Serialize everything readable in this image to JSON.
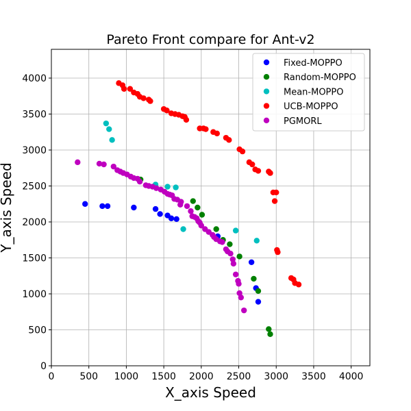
{
  "chart_data": {
    "type": "scatter",
    "title": "Pareto Front compare for Ant-v2",
    "xlabel": "X_axis Speed",
    "ylabel": "Y_axis Speed",
    "xlim": [
      0,
      4250
    ],
    "ylim": [
      0,
      4400
    ],
    "xticks": [
      0,
      500,
      1000,
      1500,
      2000,
      2500,
      3000,
      3500,
      4000
    ],
    "yticks": [
      0,
      500,
      1000,
      1500,
      2000,
      2500,
      3000,
      3500,
      4000
    ],
    "grid": true,
    "legend_position": "top-right",
    "series": [
      {
        "name": "Fixed-MOPPO",
        "color": "#0000ff",
        "points": [
          [
            450,
            2250
          ],
          [
            680,
            2220
          ],
          [
            750,
            2220
          ],
          [
            1100,
            2200
          ],
          [
            1390,
            2180
          ],
          [
            1450,
            2110
          ],
          [
            1550,
            2090
          ],
          [
            1600,
            2050
          ],
          [
            1670,
            2040
          ],
          [
            2220,
            1800
          ],
          [
            2670,
            1440
          ],
          [
            2730,
            1080
          ],
          [
            2760,
            890
          ]
        ]
      },
      {
        "name": "Random-MOPPO",
        "color": "#008000",
        "points": [
          [
            1190,
            2590
          ],
          [
            1890,
            2290
          ],
          [
            1950,
            2200
          ],
          [
            2010,
            2100
          ],
          [
            2200,
            1900
          ],
          [
            2290,
            1750
          ],
          [
            2380,
            1690
          ],
          [
            2510,
            1520
          ],
          [
            2700,
            1210
          ],
          [
            2760,
            1040
          ],
          [
            2900,
            510
          ],
          [
            2920,
            440
          ]
        ]
      },
      {
        "name": "Mean-MOPPO",
        "color": "#00bfbf",
        "points": [
          [
            730,
            3370
          ],
          [
            770,
            3290
          ],
          [
            810,
            3140
          ],
          [
            1390,
            2520
          ],
          [
            1550,
            2490
          ],
          [
            1660,
            2480
          ],
          [
            1760,
            1900
          ],
          [
            2460,
            1880
          ],
          [
            2740,
            1740
          ]
        ]
      },
      {
        "name": "UCB-MOPPO",
        "color": "#ff0000",
        "points": [
          [
            900,
            3930
          ],
          [
            950,
            3900
          ],
          [
            970,
            3850
          ],
          [
            1050,
            3850
          ],
          [
            1100,
            3800
          ],
          [
            1150,
            3780
          ],
          [
            1180,
            3740
          ],
          [
            1230,
            3720
          ],
          [
            1300,
            3700
          ],
          [
            1320,
            3680
          ],
          [
            1500,
            3570
          ],
          [
            1540,
            3550
          ],
          [
            1600,
            3510
          ],
          [
            1650,
            3500
          ],
          [
            1700,
            3490
          ],
          [
            1750,
            3470
          ],
          [
            1780,
            3460
          ],
          [
            1800,
            3420
          ],
          [
            1980,
            3300
          ],
          [
            2030,
            3300
          ],
          [
            2060,
            3290
          ],
          [
            2160,
            3250
          ],
          [
            2210,
            3230
          ],
          [
            2330,
            3170
          ],
          [
            2370,
            3140
          ],
          [
            2510,
            3010
          ],
          [
            2550,
            2980
          ],
          [
            2640,
            2830
          ],
          [
            2680,
            2800
          ],
          [
            2720,
            2730
          ],
          [
            2760,
            2710
          ],
          [
            2900,
            2700
          ],
          [
            2920,
            2680
          ],
          [
            2960,
            2410
          ],
          [
            3000,
            2410
          ],
          [
            2980,
            2290
          ],
          [
            3010,
            1610
          ],
          [
            3020,
            1580
          ],
          [
            3200,
            1220
          ],
          [
            3230,
            1200
          ],
          [
            3250,
            1150
          ],
          [
            3300,
            1130
          ]
        ]
      },
      {
        "name": "PGMORL",
        "color": "#bf00bf",
        "points": [
          [
            350,
            2830
          ],
          [
            640,
            2810
          ],
          [
            700,
            2800
          ],
          [
            830,
            2770
          ],
          [
            880,
            2720
          ],
          [
            920,
            2700
          ],
          [
            960,
            2680
          ],
          [
            1010,
            2660
          ],
          [
            1060,
            2630
          ],
          [
            1100,
            2610
          ],
          [
            1150,
            2600
          ],
          [
            1180,
            2560
          ],
          [
            1260,
            2510
          ],
          [
            1300,
            2500
          ],
          [
            1350,
            2490
          ],
          [
            1400,
            2470
          ],
          [
            1460,
            2450
          ],
          [
            1510,
            2420
          ],
          [
            1550,
            2390
          ],
          [
            1580,
            2380
          ],
          [
            1610,
            2370
          ],
          [
            1640,
            2320
          ],
          [
            1680,
            2310
          ],
          [
            1730,
            2280
          ],
          [
            1720,
            2240
          ],
          [
            1810,
            2220
          ],
          [
            1860,
            2150
          ],
          [
            1880,
            2080
          ],
          [
            1910,
            2070
          ],
          [
            1940,
            2050
          ],
          [
            1960,
            2010
          ],
          [
            1980,
            1990
          ],
          [
            2000,
            1950
          ],
          [
            2050,
            1900
          ],
          [
            2100,
            1860
          ],
          [
            2150,
            1820
          ],
          [
            2170,
            1790
          ],
          [
            2200,
            1760
          ],
          [
            2250,
            1730
          ],
          [
            2280,
            1720
          ],
          [
            2330,
            1620
          ],
          [
            2350,
            1590
          ],
          [
            2390,
            1560
          ],
          [
            2420,
            1480
          ],
          [
            2430,
            1420
          ],
          [
            2460,
            1270
          ],
          [
            2490,
            1180
          ],
          [
            2500,
            1140
          ],
          [
            2510,
            1010
          ],
          [
            2530,
            950
          ],
          [
            2570,
            770
          ]
        ]
      }
    ]
  }
}
